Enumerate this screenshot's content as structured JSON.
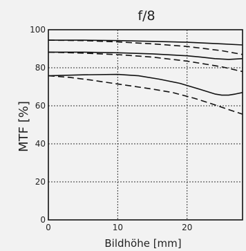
{
  "chart_data": {
    "type": "line",
    "title": "f/8",
    "xlabel": "Bildhöhe [mm]",
    "ylabel": "MTF [%]",
    "xlim": [
      0,
      28
    ],
    "ylim": [
      0,
      100
    ],
    "x_ticks": [
      0,
      10,
      20
    ],
    "y_ticks": [
      0,
      20,
      40,
      60,
      80,
      100
    ],
    "grid": true,
    "series": [
      {
        "style": "solid",
        "x": [
          0,
          5,
          10,
          15,
          20,
          25,
          28
        ],
        "y": [
          94.5,
          94.5,
          94.3,
          93.9,
          93.4,
          92.6,
          92.0
        ]
      },
      {
        "style": "dashed",
        "x": [
          0,
          5,
          10,
          15,
          20,
          25,
          28
        ],
        "y": [
          94.5,
          94.3,
          93.6,
          92.6,
          91.2,
          89.0,
          87.0
        ]
      },
      {
        "style": "solid",
        "x": [
          0,
          5,
          10,
          15,
          20,
          22,
          24,
          26,
          28
        ],
        "y": [
          88.2,
          88.2,
          87.9,
          87.3,
          86.3,
          85.6,
          84.8,
          84.4,
          84.8
        ]
      },
      {
        "style": "dashed",
        "x": [
          0,
          5,
          10,
          15,
          20,
          25,
          28
        ],
        "y": [
          88.2,
          87.7,
          86.9,
          85.6,
          83.5,
          80.5,
          78.0
        ]
      },
      {
        "style": "solid",
        "x": [
          0,
          5,
          10,
          13,
          16,
          19,
          22,
          24,
          25,
          26,
          27,
          28
        ],
        "y": [
          75.8,
          76.3,
          76.5,
          75.8,
          74.0,
          71.8,
          68.5,
          66.2,
          65.6,
          65.6,
          66.2,
          67.0
        ]
      },
      {
        "style": "dashed",
        "x": [
          0,
          3,
          6,
          9,
          12,
          15,
          18,
          21,
          24,
          26,
          28
        ],
        "y": [
          75.8,
          75.0,
          73.6,
          72.0,
          70.4,
          68.8,
          66.9,
          64.0,
          60.5,
          58.0,
          55.6
        ]
      }
    ]
  }
}
